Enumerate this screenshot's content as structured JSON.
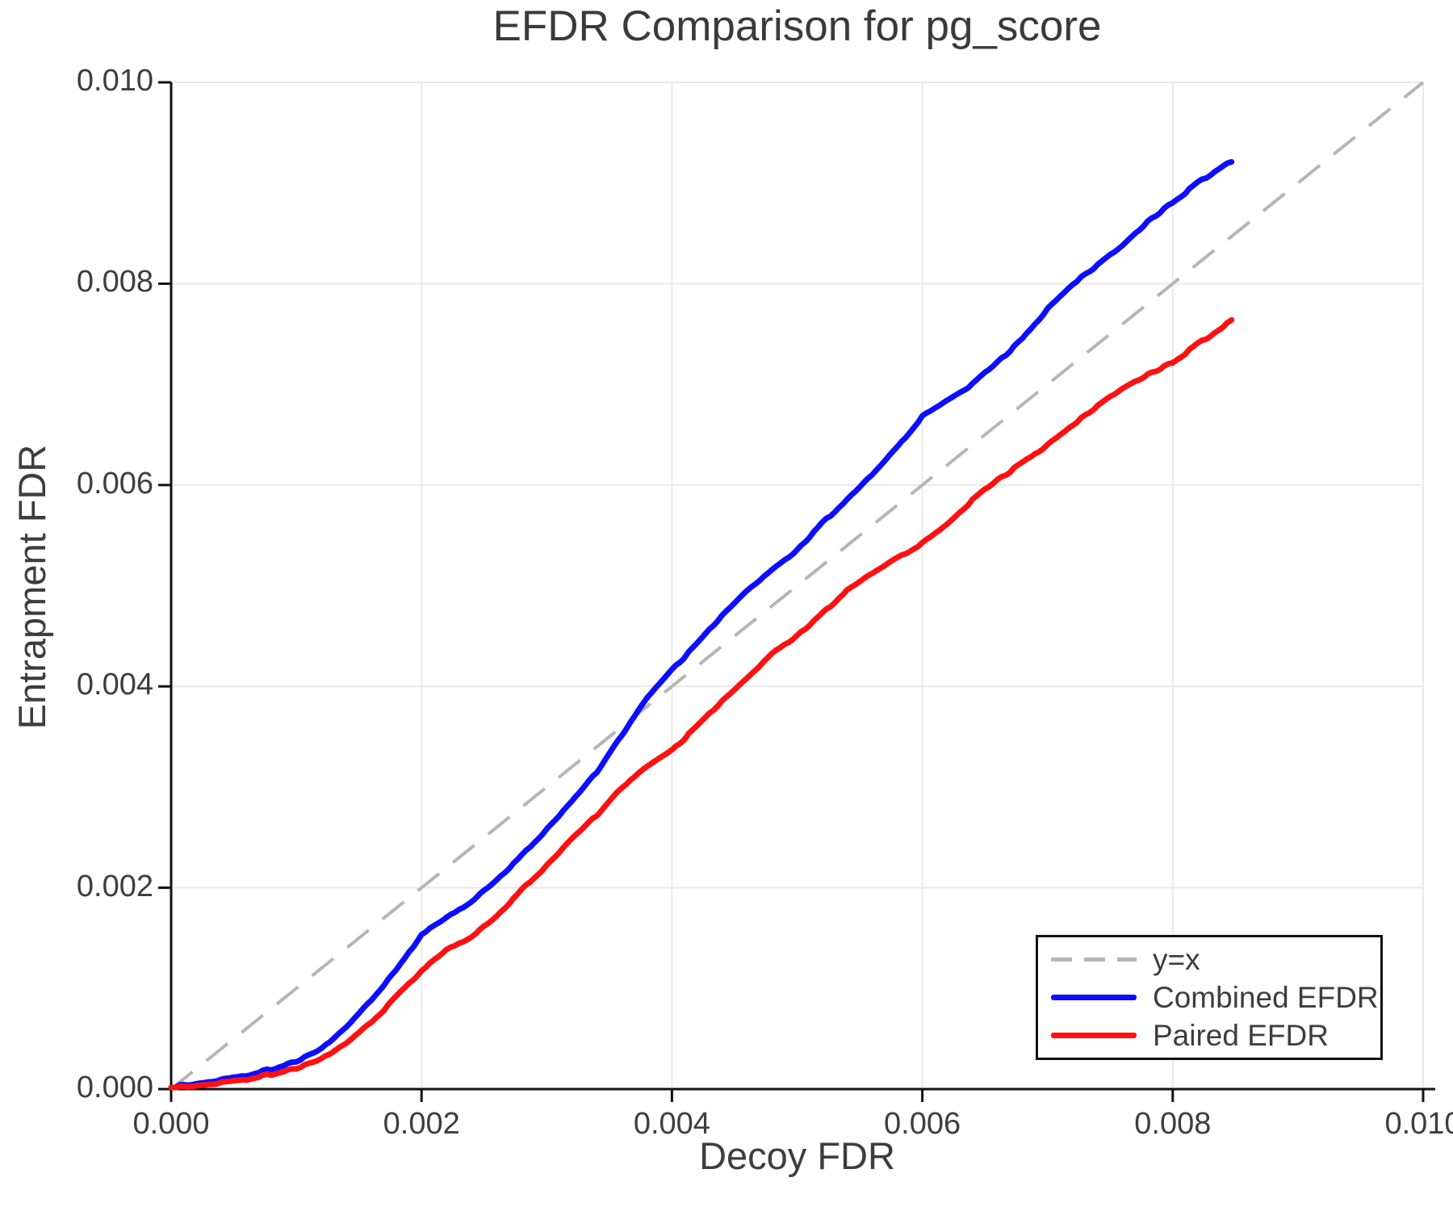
{
  "title": "EFDR Comparison for pg_score",
  "axes": {
    "xlabel": "Decoy FDR",
    "ylabel": "Entrapment FDR",
    "x_ticks": {
      "values": [
        0,
        0.002,
        0.004,
        0.006,
        0.008,
        0.01
      ],
      "labels": [
        "0.000",
        "0.002",
        "0.004",
        "0.006",
        "0.008",
        "0.010"
      ]
    },
    "y_ticks": {
      "values": [
        0,
        0.002,
        0.004,
        0.006,
        0.008,
        0.01
      ],
      "labels": [
        "0.000",
        "0.002",
        "0.004",
        "0.006",
        "0.008",
        "0.010"
      ]
    }
  },
  "colors": {
    "reference_line": "#b5b5b5",
    "combined": "#0d0dff",
    "paired": "#ff1010",
    "grid": "#e9e9e9",
    "spine": "#111111",
    "text": "#3d3d3d"
  },
  "legend": {
    "entries": [
      {
        "label": "y=x",
        "color": "#b5b5b5",
        "dashed": true
      },
      {
        "label": "Combined EFDR",
        "color": "#0d0dff",
        "dashed": false
      },
      {
        "label": "Paired EFDR",
        "color": "#ff1010",
        "dashed": false
      }
    ]
  },
  "chart_data": {
    "type": "line",
    "title": "EFDR Comparison for pg_score",
    "xlabel": "Decoy FDR",
    "ylabel": "Entrapment FDR",
    "xlim": [
      0,
      0.01
    ],
    "ylim": [
      0,
      0.01
    ],
    "grid": true,
    "legend_position": "lower right",
    "reference_line": {
      "name": "y=x",
      "from": [
        0,
        0
      ],
      "to": [
        0.01,
        0.01
      ],
      "style": "dashed",
      "color": "#b5b5b5"
    },
    "series": [
      {
        "name": "Combined EFDR",
        "color": "#0d0dff",
        "points": [
          [
            0.0,
            2e-05
          ],
          [
            0.0002,
            5e-05
          ],
          [
            0.0004,
            9e-05
          ],
          [
            0.0006,
            0.00014
          ],
          [
            0.0008,
            0.0002
          ],
          [
            0.001,
            0.00028
          ],
          [
            0.0012,
            0.0004
          ],
          [
            0.0014,
            0.00062
          ],
          [
            0.0016,
            0.00088
          ],
          [
            0.0017,
            0.00103
          ],
          [
            0.0018,
            0.00118
          ],
          [
            0.0019,
            0.00136
          ],
          [
            0.002,
            0.00154
          ],
          [
            0.0022,
            0.0017
          ],
          [
            0.0024,
            0.00187
          ],
          [
            0.0026,
            0.00208
          ],
          [
            0.0028,
            0.00232
          ],
          [
            0.003,
            0.00258
          ],
          [
            0.0032,
            0.00285
          ],
          [
            0.0034,
            0.00315
          ],
          [
            0.0036,
            0.00352
          ],
          [
            0.0038,
            0.00388
          ],
          [
            0.004,
            0.00416
          ],
          [
            0.0042,
            0.00442
          ],
          [
            0.0044,
            0.0047
          ],
          [
            0.0046,
            0.00495
          ],
          [
            0.0048,
            0.00515
          ],
          [
            0.005,
            0.00535
          ],
          [
            0.0052,
            0.00562
          ],
          [
            0.0054,
            0.00585
          ],
          [
            0.0056,
            0.0061
          ],
          [
            0.0058,
            0.00638
          ],
          [
            0.006,
            0.00668
          ],
          [
            0.0062,
            0.00685
          ],
          [
            0.0064,
            0.007
          ],
          [
            0.0066,
            0.00722
          ],
          [
            0.0068,
            0.00745
          ],
          [
            0.007,
            0.00775
          ],
          [
            0.0072,
            0.008
          ],
          [
            0.0074,
            0.00818
          ],
          [
            0.0076,
            0.00838
          ],
          [
            0.0078,
            0.00862
          ],
          [
            0.008,
            0.00881
          ],
          [
            0.0082,
            0.009
          ],
          [
            0.0084,
            0.00916
          ],
          [
            0.00847,
            0.00922
          ]
        ]
      },
      {
        "name": "Paired EFDR",
        "color": "#ff1010",
        "points": [
          [
            0.0,
            1e-05
          ],
          [
            0.0002,
            3e-05
          ],
          [
            0.0004,
            6e-05
          ],
          [
            0.0006,
            0.0001
          ],
          [
            0.0008,
            0.00015
          ],
          [
            0.001,
            0.00021
          ],
          [
            0.0012,
            0.0003
          ],
          [
            0.0014,
            0.00046
          ],
          [
            0.0016,
            0.00066
          ],
          [
            0.0017,
            0.00078
          ],
          [
            0.0018,
            0.00092
          ],
          [
            0.0019,
            0.00105
          ],
          [
            0.002,
            0.00118
          ],
          [
            0.0022,
            0.00138
          ],
          [
            0.0024,
            0.00152
          ],
          [
            0.0026,
            0.00172
          ],
          [
            0.0028,
            0.00198
          ],
          [
            0.003,
            0.00222
          ],
          [
            0.0032,
            0.00248
          ],
          [
            0.0034,
            0.00272
          ],
          [
            0.0036,
            0.003
          ],
          [
            0.0038,
            0.0032
          ],
          [
            0.004,
            0.00336
          ],
          [
            0.0042,
            0.0036
          ],
          [
            0.0044,
            0.00385
          ],
          [
            0.0046,
            0.00408
          ],
          [
            0.0048,
            0.00432
          ],
          [
            0.005,
            0.0045
          ],
          [
            0.0052,
            0.00472
          ],
          [
            0.0054,
            0.00495
          ],
          [
            0.0056,
            0.00512
          ],
          [
            0.0058,
            0.00528
          ],
          [
            0.006,
            0.00542
          ],
          [
            0.0062,
            0.00562
          ],
          [
            0.0064,
            0.00585
          ],
          [
            0.0066,
            0.00605
          ],
          [
            0.0068,
            0.00622
          ],
          [
            0.007,
            0.0064
          ],
          [
            0.0072,
            0.0066
          ],
          [
            0.0074,
            0.00678
          ],
          [
            0.0076,
            0.00696
          ],
          [
            0.0078,
            0.0071
          ],
          [
            0.008,
            0.00722
          ],
          [
            0.0082,
            0.0074
          ],
          [
            0.0084,
            0.00756
          ],
          [
            0.00847,
            0.00765
          ]
        ]
      }
    ]
  }
}
